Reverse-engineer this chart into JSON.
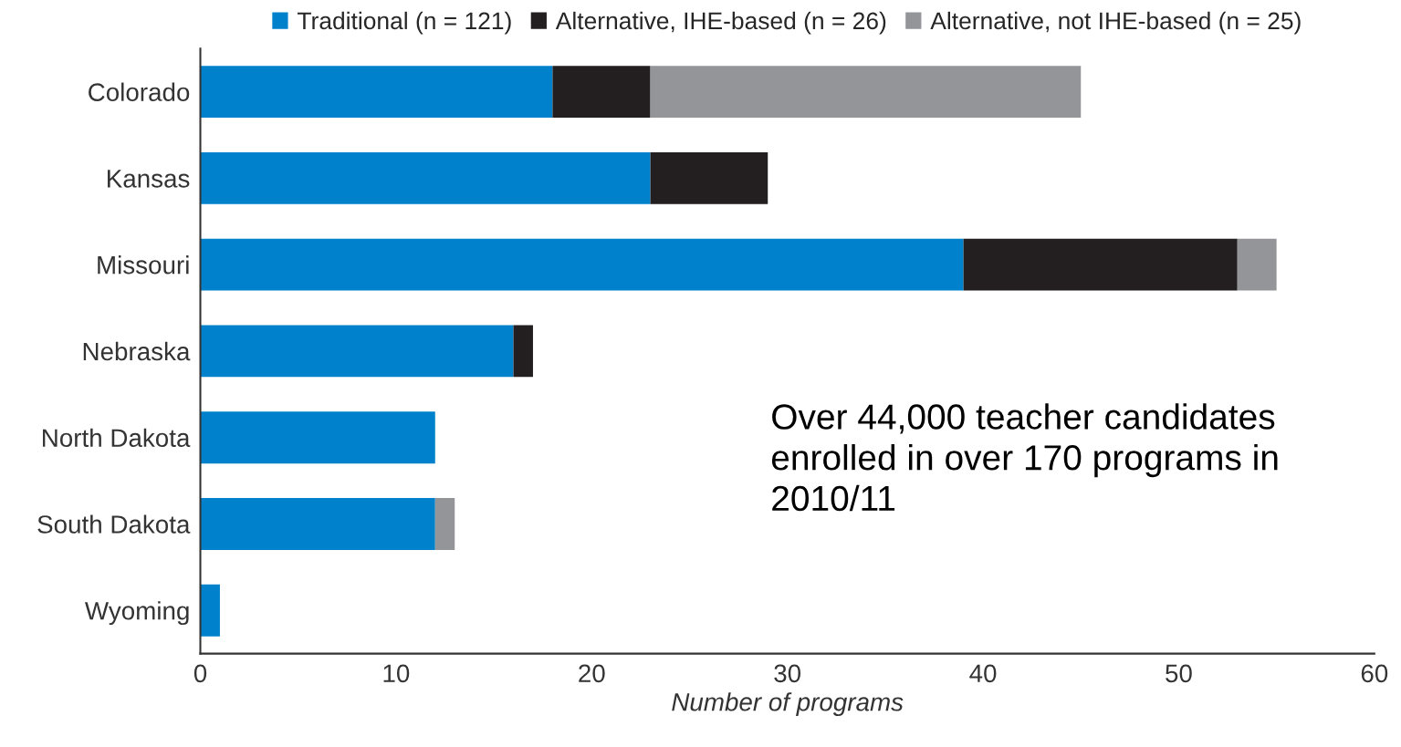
{
  "chart_data": {
    "type": "bar",
    "orientation": "horizontal",
    "stacked": true,
    "categories": [
      "Colorado",
      "Kansas",
      "Missouri",
      "Nebraska",
      "North Dakota",
      "South Dakota",
      "Wyoming"
    ],
    "series": [
      {
        "name": "Traditional (n = 121)",
        "color": "#0081cb",
        "values": [
          18,
          23,
          39,
          16,
          12,
          12,
          1
        ]
      },
      {
        "name": "Alternative, IHE-based (n = 26)",
        "color": "#231f20",
        "values": [
          5,
          6,
          14,
          1,
          null,
          null,
          null
        ]
      },
      {
        "name": "Alternative, not IHE-based (n = 25)",
        "color": "#939598",
        "values": [
          22,
          null,
          2,
          null,
          null,
          1,
          null
        ]
      }
    ],
    "xlabel": "Number of programs",
    "xlim": [
      0,
      60
    ],
    "xticks": [
      0,
      10,
      20,
      30,
      40,
      50,
      60
    ],
    "legend": "top",
    "grid": false,
    "annotations": [
      "Over 44,000 teacher candidates enrolled in over 170 programs in 2010/11"
    ]
  }
}
